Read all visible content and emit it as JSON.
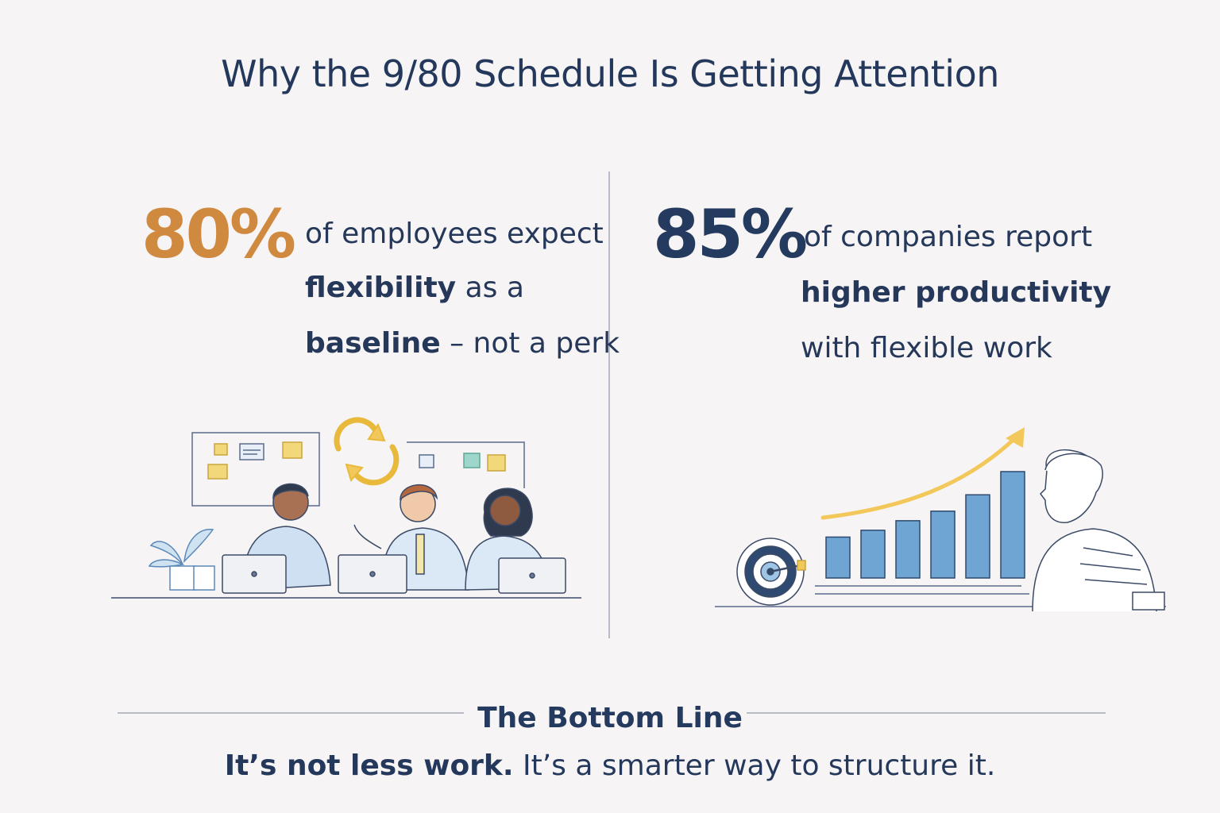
{
  "title": "Why the 9/80 Schedule Is Getting Attention",
  "left_stat": {
    "percent": "80%",
    "line1": "of employees expect",
    "line2_bold": "flexibility",
    "line2_rest": " as a",
    "line3_bold": "baseline",
    "line3_rest": " – not a perk"
  },
  "right_stat": {
    "percent": "85%",
    "line1": "of companies report",
    "line2": "higher productivity",
    "line3": "with flexible work"
  },
  "bottom": {
    "title": "The Bottom Line",
    "text_bold": "It’s not less work.",
    "text_rest": " It’s a smarter way to structure it."
  },
  "colors": {
    "accent_orange": "#d08a3f",
    "navy": "#243a5e",
    "bar_blue": "#6ea5d3",
    "arrow_yellow": "#f3c85a"
  },
  "bar_chart": {
    "values": [
      3,
      3.5,
      4.2,
      4.9,
      6.1,
      7.8
    ]
  }
}
